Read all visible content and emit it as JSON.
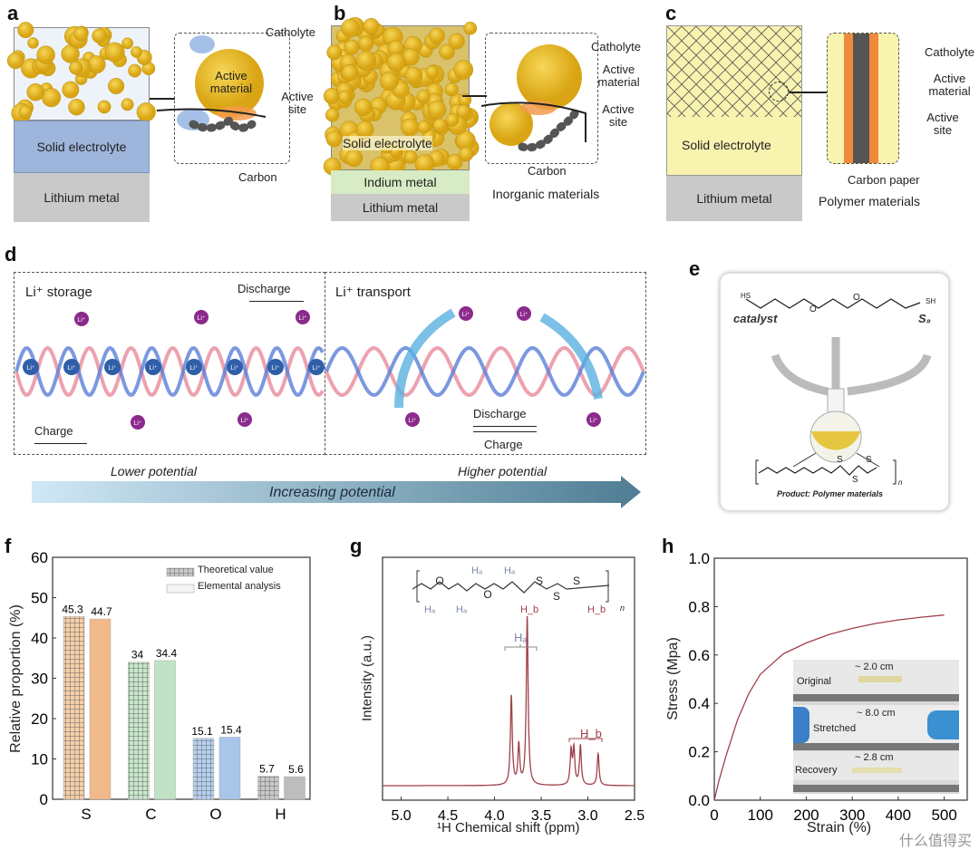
{
  "panel_labels": {
    "a": "a",
    "b": "b",
    "c": "c",
    "d": "d",
    "e": "e",
    "f": "f",
    "g": "g",
    "h": "h"
  },
  "panel_a": {
    "solid_electrolyte": "Solid electrolyte",
    "lithium_metal": "Lithium metal",
    "catholyte": "Catholyte",
    "active_material": "Active material",
    "active_site": "Active site",
    "carbon": "Carbon"
  },
  "panel_b": {
    "solid_electrolyte": "Solid electrolyte",
    "indium_metal": "Indium metal",
    "lithium_metal": "Lithium metal",
    "catholyte": "Catholyte",
    "active_material": "Active material",
    "active_site": "Active site",
    "carbon": "Carbon",
    "inorganic": "Inorganic materials"
  },
  "panel_c": {
    "solid_electrolyte": "Solid electrolyte",
    "lithium_metal": "Lithium metal",
    "catholyte": "Catholyte",
    "active_material": "Active material",
    "active_site": "Active site",
    "carbon_paper": "Carbon paper",
    "polymer": "Polymer materials"
  },
  "panel_d": {
    "storage": "Li⁺ storage",
    "transport": "Li⁺ transport",
    "discharge_left": "Discharge",
    "charge_left": "Charge",
    "discharge_right": "Discharge",
    "charge_right": "Charge",
    "ion": "Li⁺",
    "lower": "Lower potential",
    "higher": "Higher potential",
    "increasing": "Increasing potential"
  },
  "panel_e": {
    "hs": "HS",
    "sh": "SH",
    "o": "O",
    "catalyst": "catalyst",
    "s8": "S₈",
    "product": "Product: Polymer materials",
    "s": "S",
    "n": "n"
  },
  "colors": {
    "yellow": "#e9c232",
    "electrolyte_blue": "#9fb6dc",
    "lithium_grey": "#c9c9c9",
    "indium_green": "#d7ebc4",
    "orange": "#f2b98a",
    "green": "#bfe3c4",
    "blue": "#a8c6ea",
    "grey": "#c4c4c4",
    "curve": "#a0404a"
  },
  "chart_data": [
    {
      "type": "bar",
      "title": "",
      "ylabel": "Relative proportion (%)",
      "xlabel": "",
      "ylim": [
        0,
        60
      ],
      "yticks": [
        0,
        10,
        20,
        30,
        40,
        50,
        60
      ],
      "categories": [
        "S",
        "C",
        "O",
        "H"
      ],
      "series": [
        {
          "name": "Theoretical value",
          "values": [
            45.3,
            34,
            15.1,
            5.7
          ],
          "labels": [
            "45.3",
            "34",
            "15.1",
            "5.7"
          ]
        },
        {
          "name": "Elemental analysis",
          "values": [
            44.7,
            34.4,
            15.4,
            5.6
          ],
          "labels": [
            "44.7",
            "34.4",
            "15.4",
            "5.6"
          ]
        }
      ],
      "legend": "top-right"
    },
    {
      "type": "line",
      "ylabel": "Intensity (a.u.)",
      "xlabel": "¹H Chemical shift (ppm)",
      "xlim": [
        5.2,
        2.5
      ],
      "xticks": [
        "5.0",
        "4.5",
        "4.0",
        "3.5",
        "3.0",
        "2.5"
      ],
      "peaks": [
        {
          "ppm": 3.82,
          "h": 0.45
        },
        {
          "ppm": 3.74,
          "h": 0.2
        },
        {
          "ppm": 3.65,
          "h": 0.85
        },
        {
          "ppm": 3.18,
          "h": 0.17
        },
        {
          "ppm": 3.15,
          "h": 0.18
        },
        {
          "ppm": 3.08,
          "h": 0.2
        },
        {
          "ppm": 2.89,
          "h": 0.16
        }
      ],
      "annotations": {
        "ha": "Hₐ",
        "hb": "H_b",
        "structure_o": "O",
        "structure_s": "S",
        "n": "n"
      }
    },
    {
      "type": "line",
      "ylabel": "Stress (Mpa)",
      "xlabel": "Strain (%)",
      "xlim": [
        0,
        550
      ],
      "ylim": [
        0,
        1.0
      ],
      "xticks": [
        "0",
        "100",
        "200",
        "300",
        "400",
        "500"
      ],
      "yticks": [
        "0.0",
        "0.2",
        "0.4",
        "0.6",
        "0.8",
        "1.0"
      ],
      "x": [
        0,
        10,
        25,
        50,
        75,
        100,
        150,
        200,
        250,
        300,
        350,
        400,
        450,
        500
      ],
      "y": [
        0,
        0.08,
        0.18,
        0.33,
        0.44,
        0.52,
        0.605,
        0.65,
        0.685,
        0.71,
        0.73,
        0.745,
        0.756,
        0.765
      ],
      "inset": {
        "original": "Original",
        "original_len": "~ 2.0 cm",
        "stretched": "Stretched",
        "stretched_len": "~ 8.0 cm",
        "recovery": "Recovery",
        "recovery_len": "~ 2.8 cm"
      }
    }
  ],
  "watermark": "什么值得买"
}
